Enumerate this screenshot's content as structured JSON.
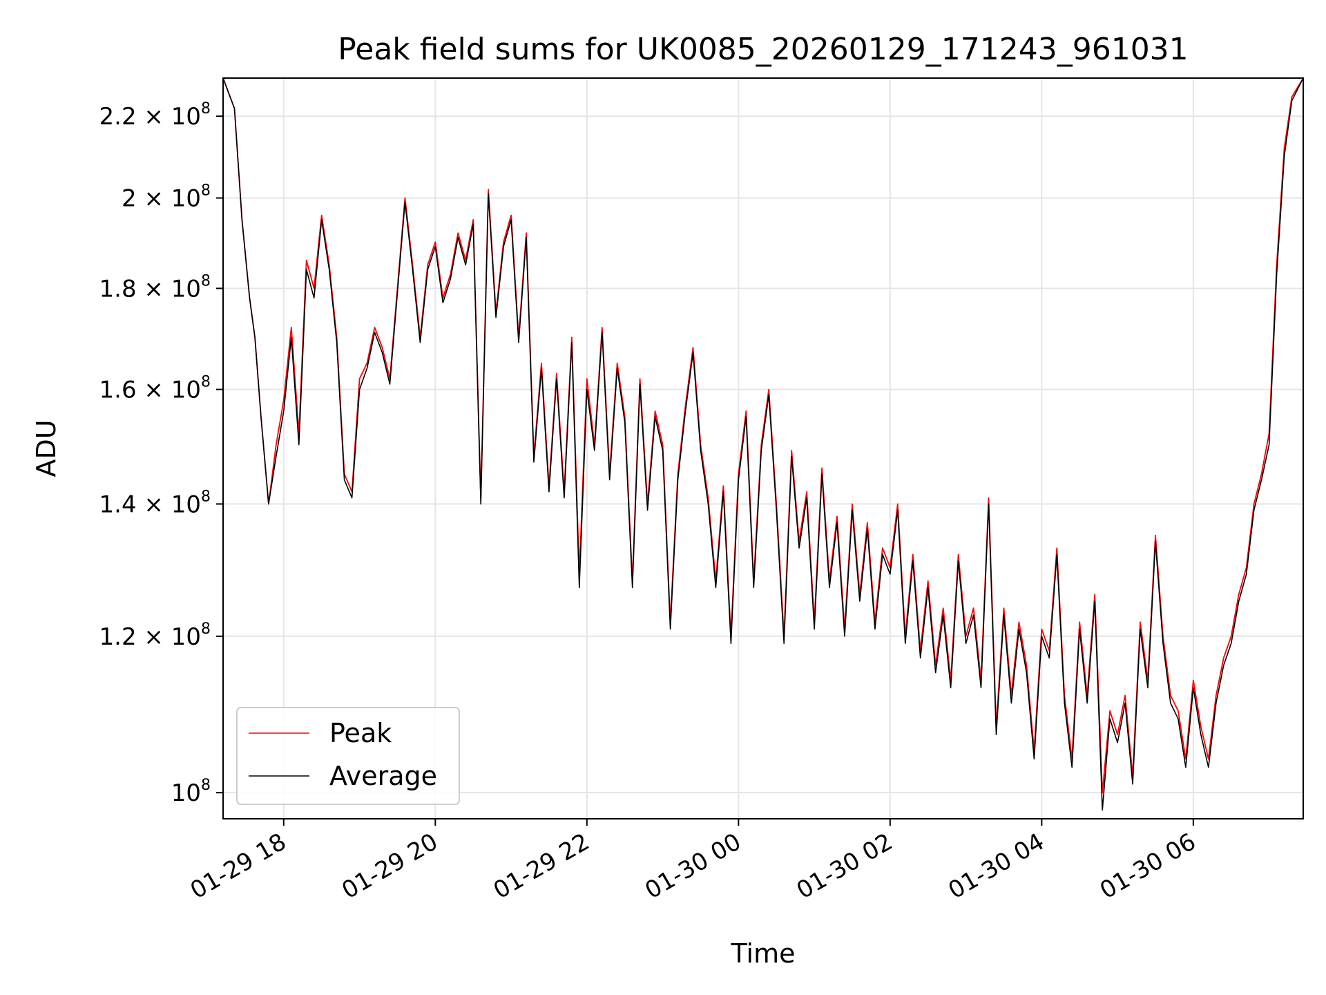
{
  "chart_data": {
    "type": "line",
    "title": "Peak field sums for UK0085_20260129_171243_961031",
    "xlabel": "Time",
    "ylabel": "ADU",
    "yscale": "log",
    "grid": true,
    "x_range_hours": [
      17.2,
      31.45
    ],
    "x_ticks": [
      {
        "hour": 18,
        "label": "01-29 18"
      },
      {
        "hour": 20,
        "label": "01-29 20"
      },
      {
        "hour": 22,
        "label": "01-29 22"
      },
      {
        "hour": 24,
        "label": "01-30 00"
      },
      {
        "hour": 26,
        "label": "01-30 02"
      },
      {
        "hour": 28,
        "label": "01-30 04"
      },
      {
        "hour": 30,
        "label": "01-30 06"
      }
    ],
    "ylim": [
      97000000,
      230000000
    ],
    "y_ticks": [
      {
        "value": 100000000,
        "mantissa": "",
        "exp": "8"
      },
      {
        "value": 120000000,
        "mantissa": "1.2",
        "exp": "8"
      },
      {
        "value": 140000000,
        "mantissa": "1.4",
        "exp": "8"
      },
      {
        "value": 160000000,
        "mantissa": "1.6",
        "exp": "8"
      },
      {
        "value": 180000000,
        "mantissa": "1.8",
        "exp": "8"
      },
      {
        "value": 200000000,
        "mantissa": "2",
        "exp": "8"
      },
      {
        "value": 220000000,
        "mantissa": "2.2",
        "exp": "8"
      }
    ],
    "times_sign": "×",
    "tick_base": "10",
    "legend_position": "lower-left",
    "series": [
      {
        "name": "Peak",
        "color": "#ff0000"
      },
      {
        "name": "Average",
        "color": "#000000"
      }
    ],
    "x": [
      17.2,
      17.35,
      17.45,
      17.55,
      17.62,
      17.7,
      17.8,
      17.9,
      18.0,
      18.1,
      18.2,
      18.3,
      18.4,
      18.5,
      18.6,
      18.7,
      18.8,
      18.9,
      19.0,
      19.1,
      19.2,
      19.3,
      19.4,
      19.5,
      19.6,
      19.7,
      19.8,
      19.9,
      20.0,
      20.1,
      20.2,
      20.3,
      20.4,
      20.5,
      20.6,
      20.7,
      20.8,
      20.9,
      21.0,
      21.1,
      21.2,
      21.3,
      21.4,
      21.5,
      21.6,
      21.7,
      21.8,
      21.9,
      22.0,
      22.1,
      22.2,
      22.3,
      22.4,
      22.5,
      22.6,
      22.7,
      22.8,
      22.9,
      23.0,
      23.1,
      23.2,
      23.3,
      23.4,
      23.5,
      23.6,
      23.7,
      23.8,
      23.9,
      24.0,
      24.1,
      24.2,
      24.3,
      24.4,
      24.5,
      24.6,
      24.7,
      24.8,
      24.9,
      25.0,
      25.1,
      25.2,
      25.3,
      25.4,
      25.5,
      25.6,
      25.7,
      25.8,
      25.9,
      26.0,
      26.1,
      26.2,
      26.3,
      26.4,
      26.5,
      26.6,
      26.7,
      26.8,
      26.9,
      27.0,
      27.1,
      27.2,
      27.3,
      27.4,
      27.5,
      27.6,
      27.7,
      27.8,
      27.9,
      28.0,
      28.1,
      28.2,
      28.3,
      28.4,
      28.5,
      28.6,
      28.7,
      28.8,
      28.9,
      29.0,
      29.1,
      29.2,
      29.3,
      29.4,
      29.5,
      29.6,
      29.7,
      29.8,
      29.9,
      30.0,
      30.1,
      30.2,
      30.3,
      30.4,
      30.5,
      30.6,
      30.7,
      30.8,
      30.9,
      31.0,
      31.1,
      31.2,
      31.3,
      31.45
    ],
    "peak_values": [
      230000000,
      222000000,
      195000000,
      178000000,
      170000000,
      155000000,
      140000000,
      150000000,
      158000000,
      172000000,
      152000000,
      186000000,
      180000000,
      196000000,
      185000000,
      170000000,
      145000000,
      142000000,
      162000000,
      165000000,
      172000000,
      168000000,
      162000000,
      180000000,
      200000000,
      185000000,
      170000000,
      185000000,
      190000000,
      178000000,
      183000000,
      192000000,
      186000000,
      195000000,
      141000000,
      202000000,
      175000000,
      190000000,
      196000000,
      170000000,
      192000000,
      148000000,
      165000000,
      143000000,
      163000000,
      142000000,
      170000000,
      129000000,
      162000000,
      150000000,
      172000000,
      145000000,
      165000000,
      155000000,
      128000000,
      162000000,
      140000000,
      156000000,
      150000000,
      122000000,
      145000000,
      157000000,
      168000000,
      150000000,
      141000000,
      128000000,
      143000000,
      120000000,
      145000000,
      156000000,
      128000000,
      150000000,
      160000000,
      140000000,
      120000000,
      149000000,
      134000000,
      142000000,
      122000000,
      146000000,
      128000000,
      138000000,
      121000000,
      140000000,
      126000000,
      137000000,
      122000000,
      133000000,
      130000000,
      140000000,
      120000000,
      132000000,
      118000000,
      128000000,
      116000000,
      124000000,
      114000000,
      132000000,
      120000000,
      124000000,
      114000000,
      141000000,
      108000000,
      124000000,
      112000000,
      122000000,
      116000000,
      105000000,
      121000000,
      118000000,
      133000000,
      112000000,
      104000000,
      122000000,
      112000000,
      126000000,
      100000000,
      110000000,
      107000000,
      112000000,
      102000000,
      122000000,
      114000000,
      135000000,
      120000000,
      112000000,
      110000000,
      104000000,
      114000000,
      108000000,
      104000000,
      112000000,
      117000000,
      120000000,
      126000000,
      130000000,
      140000000,
      145000000,
      152000000,
      185000000,
      212000000,
      225000000,
      230000000
    ],
    "average_values": [
      230000000,
      222000000,
      195000000,
      178000000,
      170000000,
      155000000,
      140000000,
      148000000,
      156000000,
      170000000,
      150000000,
      184000000,
      178000000,
      195000000,
      184000000,
      169000000,
      144000000,
      141000000,
      160000000,
      164000000,
      171000000,
      167000000,
      161000000,
      179000000,
      199000000,
      184000000,
      169000000,
      184000000,
      189000000,
      177000000,
      182000000,
      191000000,
      185000000,
      194000000,
      140000000,
      201000000,
      174000000,
      189000000,
      195000000,
      169000000,
      191000000,
      147000000,
      164000000,
      142000000,
      162000000,
      141000000,
      169000000,
      127000000,
      160000000,
      149000000,
      171000000,
      144000000,
      164000000,
      154000000,
      127000000,
      161000000,
      139000000,
      155000000,
      149000000,
      121000000,
      144000000,
      156000000,
      167000000,
      149000000,
      140000000,
      127000000,
      142000000,
      119000000,
      144000000,
      155000000,
      127000000,
      149000000,
      159000000,
      139000000,
      119000000,
      148000000,
      133000000,
      141000000,
      121000000,
      145000000,
      127000000,
      137000000,
      120000000,
      139000000,
      125000000,
      136000000,
      121000000,
      132000000,
      129000000,
      139000000,
      119000000,
      131000000,
      117000000,
      127000000,
      115000000,
      123000000,
      113000000,
      131000000,
      119000000,
      123000000,
      113000000,
      140000000,
      107000000,
      123000000,
      111000000,
      121000000,
      115000000,
      104000000,
      120000000,
      117000000,
      132000000,
      111000000,
      103000000,
      121000000,
      111000000,
      125000000,
      98000000,
      109000000,
      106000000,
      111000000,
      101000000,
      121000000,
      113000000,
      134000000,
      119000000,
      111000000,
      109000000,
      103000000,
      113000000,
      107000000,
      103000000,
      111000000,
      116000000,
      119000000,
      125000000,
      129000000,
      139000000,
      144000000,
      150000000,
      183000000,
      210000000,
      224000000,
      230000000
    ]
  }
}
